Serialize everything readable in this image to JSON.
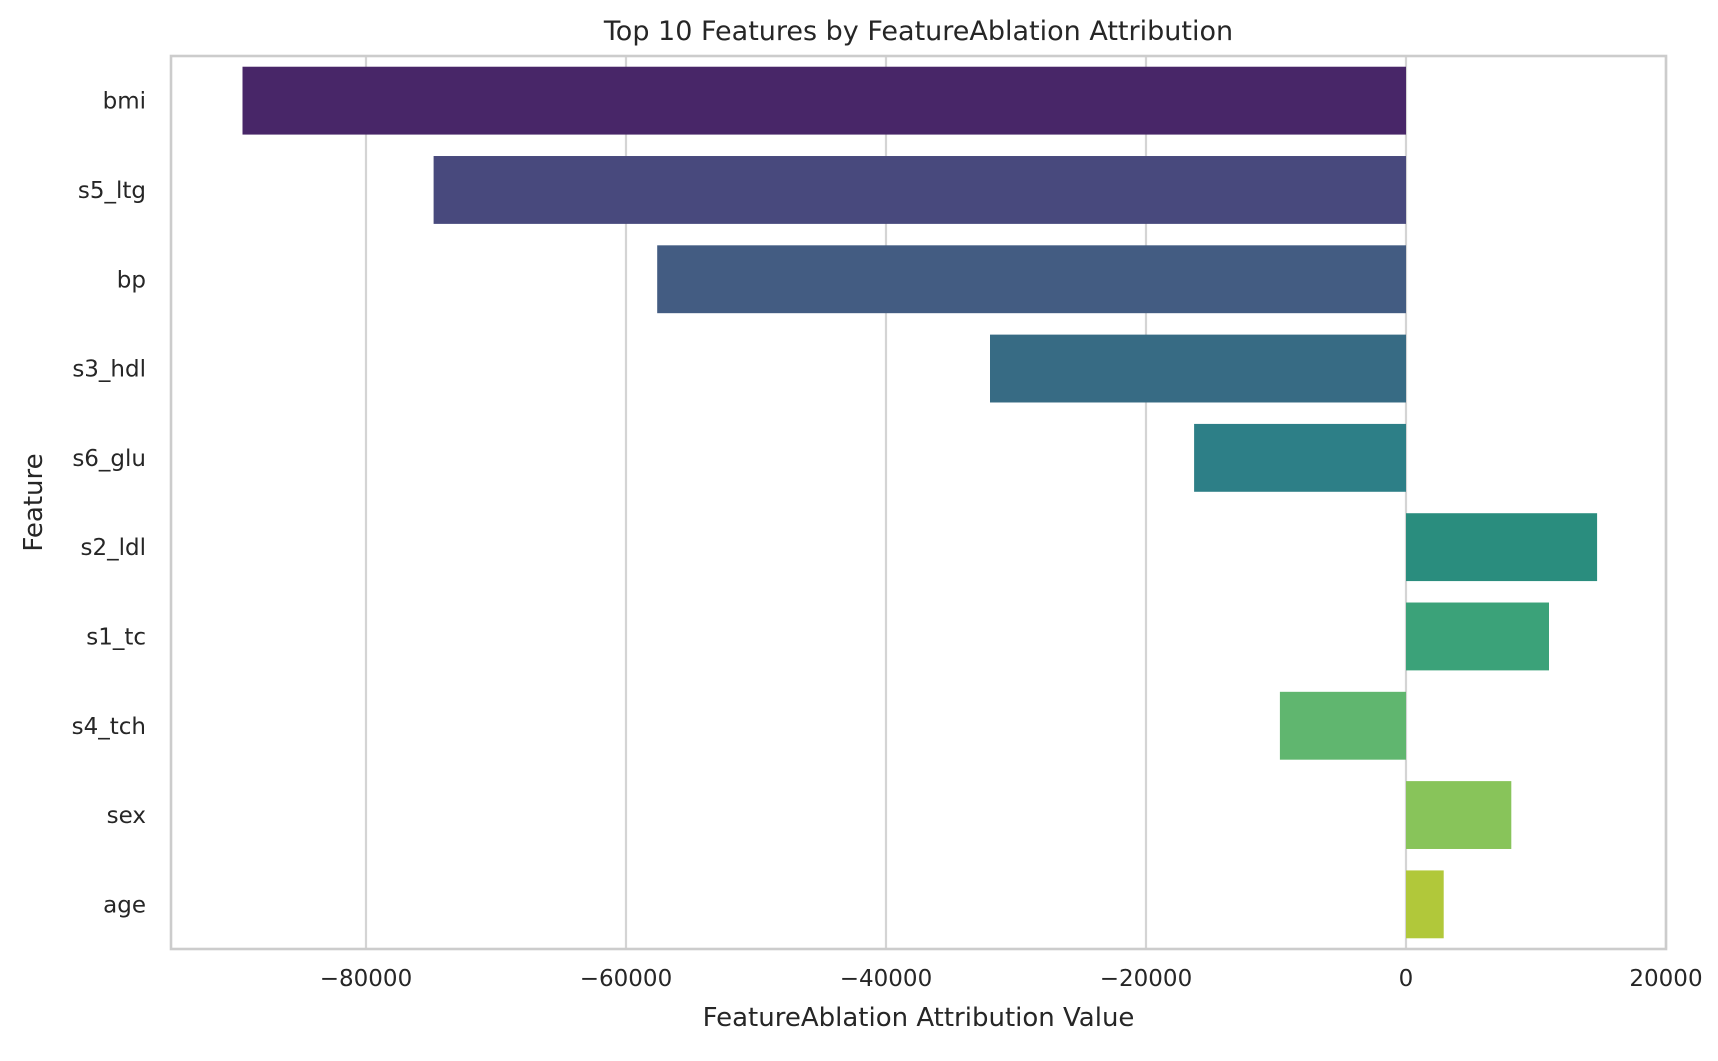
{
  "chart_data": {
    "type": "bar",
    "orientation": "horizontal",
    "title": "Top 10 Features by FeatureAblation Attribution",
    "xlabel": "FeatureAblation Attribution Value",
    "ylabel": "Feature",
    "categories": [
      "bmi",
      "s5_ltg",
      "bp",
      "s3_hdl",
      "s6_glu",
      "s2_ldl",
      "s1_tc",
      "s4_tch",
      "sex",
      "age"
    ],
    "values": [
      -89500,
      -74800,
      -57600,
      -32000,
      -16300,
      14700,
      11000,
      -9700,
      8100,
      2900
    ],
    "colors": [
      "#482668",
      "#48497d",
      "#435c82",
      "#376b84",
      "#2d7f87",
      "#2a8d7e",
      "#3ba279",
      "#60b66f",
      "#88c45a",
      "#b1c83a"
    ],
    "xlim": [
      -95000,
      20000
    ],
    "xticks": [
      -80000,
      -60000,
      -40000,
      -20000,
      0,
      20000
    ],
    "xtick_labels": [
      "−80000",
      "−60000",
      "−40000",
      "−20000",
      "0",
      "20000"
    ],
    "grid": true,
    "style": {
      "grid_color": "#d4d4d4",
      "spine_color": "#cccccc",
      "text_color": "#262626"
    }
  }
}
